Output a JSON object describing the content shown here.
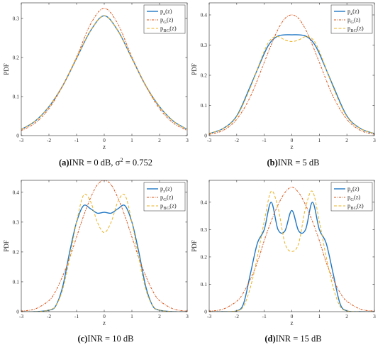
{
  "colors": {
    "pz": "#1f77c4",
    "pg": "#d9541a",
    "pbg": "#edb120",
    "axis": "#262626"
  },
  "chart_data": [
    {
      "type": "line",
      "caption_prefix": "(a)",
      "caption": "INR = 0 dB, σ² = 0.752",
      "xlabel": "z",
      "ylabel": "PDF",
      "xlim": [
        -3,
        3
      ],
      "ylim": [
        0,
        0.34
      ],
      "xticks": [
        "-3",
        "-2",
        "-1",
        "0",
        "1",
        "2",
        "3"
      ],
      "yticks": [
        "0",
        "0.1",
        "0.2",
        "0.3"
      ],
      "ytick_values": [
        0,
        0.1,
        0.2,
        0.3
      ],
      "legend": [
        "p_z(z)",
        "p_G(z)",
        "p_BG(z)"
      ],
      "legend_position": "top-right",
      "x": [
        -3,
        -2.5,
        -2,
        -1.5,
        -1,
        -0.5,
        0,
        0.5,
        1,
        1.5,
        2,
        2.5,
        3
      ],
      "series": [
        {
          "name": "p_z(z)",
          "style": "solid",
          "values": [
            0.016,
            0.037,
            0.074,
            0.128,
            0.198,
            0.268,
            0.307,
            0.268,
            0.198,
            0.128,
            0.074,
            0.037,
            0.016
          ]
        },
        {
          "name": "p_G(z)",
          "style": "dashdot",
          "values": [
            0.013,
            0.032,
            0.069,
            0.128,
            0.201,
            0.285,
            0.326,
            0.285,
            0.201,
            0.128,
            0.069,
            0.032,
            0.013
          ]
        },
        {
          "name": "p_BG(z)",
          "style": "dashed",
          "values": [
            0.016,
            0.037,
            0.074,
            0.128,
            0.198,
            0.268,
            0.307,
            0.268,
            0.198,
            0.128,
            0.074,
            0.037,
            0.016
          ]
        }
      ]
    },
    {
      "type": "line",
      "caption_prefix": "(b)",
      "caption": "INR = 5 dB",
      "xlabel": "z",
      "ylabel": "PDF",
      "xlim": [
        -3,
        3
      ],
      "ylim": [
        0,
        0.44
      ],
      "xticks": [
        "-3",
        "-2",
        "-1",
        "0",
        "1",
        "2",
        "3"
      ],
      "yticks": [
        "0",
        "0.1",
        "0.2",
        "0.3",
        "0.4"
      ],
      "ytick_values": [
        0,
        0.1,
        0.2,
        0.3,
        0.4
      ],
      "legend": [
        "p_z(z)",
        "p_G(z)",
        "p_BG(z)"
      ],
      "legend_position": "top-right",
      "x": [
        -3,
        -2.5,
        -2,
        -1.5,
        -1,
        -0.75,
        -0.5,
        -0.25,
        0,
        0.25,
        0.5,
        0.75,
        1,
        1.5,
        2,
        2.5,
        3
      ],
      "series": [
        {
          "name": "p_z(z)",
          "style": "solid",
          "values": [
            0.007,
            0.023,
            0.065,
            0.165,
            0.272,
            0.312,
            0.33,
            0.334,
            0.334,
            0.334,
            0.33,
            0.312,
            0.272,
            0.165,
            0.065,
            0.023,
            0.007
          ]
        },
        {
          "name": "p_G(z)",
          "style": "dashdot",
          "values": [
            0.004,
            0.017,
            0.054,
            0.13,
            0.243,
            0.3,
            0.352,
            0.388,
            0.4,
            0.388,
            0.352,
            0.3,
            0.243,
            0.13,
            0.054,
            0.017,
            0.004
          ]
        },
        {
          "name": "p_BG(z)",
          "style": "dashed",
          "values": [
            0.007,
            0.023,
            0.063,
            0.16,
            0.28,
            0.32,
            0.328,
            0.317,
            0.312,
            0.317,
            0.328,
            0.32,
            0.28,
            0.16,
            0.063,
            0.023,
            0.007
          ]
        }
      ]
    },
    {
      "type": "line",
      "caption_prefix": "(c)",
      "caption": "INR = 10 dB",
      "xlabel": "z",
      "ylabel": "PDF",
      "xlim": [
        -3,
        3
      ],
      "ylim": [
        0,
        0.44
      ],
      "xticks": [
        "-3",
        "-2",
        "-1",
        "0",
        "1",
        "2",
        "3"
      ],
      "yticks": [
        "0",
        "0.1",
        "0.2",
        "0.3",
        "0.4"
      ],
      "ytick_values": [
        0,
        0.1,
        0.2,
        0.3,
        0.4
      ],
      "legend": [
        "p_z(z)",
        "p_G(z)",
        "p_BG(z)"
      ],
      "legend_position": "top-right",
      "x": [
        -3,
        -2.5,
        -2,
        -1.75,
        -1.5,
        -1.25,
        -1,
        -0.75,
        -0.5,
        -0.25,
        0,
        0.25,
        0.5,
        0.75,
        1,
        1.25,
        1.5,
        1.75,
        2,
        2.5,
        3
      ],
      "series": [
        {
          "name": "p_z(z)",
          "style": "solid",
          "values": [
            0.0,
            0.0,
            0.005,
            0.02,
            0.085,
            0.2,
            0.3,
            0.355,
            0.345,
            0.33,
            0.333,
            0.33,
            0.345,
            0.355,
            0.3,
            0.2,
            0.085,
            0.02,
            0.005,
            0.0,
            0.0
          ]
        },
        {
          "name": "p_G(z)",
          "style": "dashdot",
          "values": [
            0.002,
            0.009,
            0.037,
            0.07,
            0.12,
            0.18,
            0.25,
            0.32,
            0.38,
            0.425,
            0.44,
            0.425,
            0.38,
            0.32,
            0.25,
            0.18,
            0.12,
            0.07,
            0.037,
            0.009,
            0.002
          ]
        },
        {
          "name": "p_BG(z)",
          "style": "dashed",
          "values": [
            0.0,
            0.0,
            0.005,
            0.02,
            0.075,
            0.18,
            0.3,
            0.39,
            0.37,
            0.3,
            0.265,
            0.3,
            0.37,
            0.39,
            0.3,
            0.18,
            0.075,
            0.02,
            0.005,
            0.0,
            0.0
          ]
        }
      ]
    },
    {
      "type": "line",
      "caption_prefix": "(d)",
      "caption": "INR = 15 dB",
      "xlabel": "z",
      "ylabel": "PDF",
      "xlim": [
        -3,
        3
      ],
      "ylim": [
        0,
        0.48
      ],
      "xticks": [
        "-3",
        "-2",
        "-1",
        "0",
        "1",
        "2",
        "3"
      ],
      "yticks": [
        "0",
        "0.1",
        "0.2",
        "0.3",
        "0.4"
      ],
      "ytick_values": [
        0,
        0.1,
        0.2,
        0.3,
        0.4
      ],
      "legend": [
        "p_z(z)",
        "p_G(z)",
        "p_BG(z)"
      ],
      "legend_position": "top-right",
      "x": [
        -3,
        -2.5,
        -2,
        -1.75,
        -1.5,
        -1.25,
        -1,
        -0.75,
        -0.5,
        -0.25,
        0,
        0.25,
        0.5,
        0.75,
        1,
        1.25,
        1.5,
        1.75,
        2,
        2.5,
        3
      ],
      "series": [
        {
          "name": "p_z(z)",
          "style": "solid",
          "values": [
            0.0,
            0.0,
            0.003,
            0.03,
            0.14,
            0.25,
            0.3,
            0.4,
            0.3,
            0.295,
            0.37,
            0.295,
            0.3,
            0.4,
            0.3,
            0.25,
            0.14,
            0.03,
            0.003,
            0.0,
            0.0
          ]
        },
        {
          "name": "p_G(z)",
          "style": "dashdot",
          "values": [
            0.002,
            0.009,
            0.038,
            0.07,
            0.12,
            0.18,
            0.26,
            0.33,
            0.39,
            0.435,
            0.455,
            0.435,
            0.39,
            0.33,
            0.26,
            0.18,
            0.12,
            0.07,
            0.038,
            0.009,
            0.002
          ]
        },
        {
          "name": "p_BG(z)",
          "style": "dashed",
          "values": [
            0.0,
            0.0,
            0.003,
            0.02,
            0.09,
            0.2,
            0.33,
            0.44,
            0.38,
            0.25,
            0.22,
            0.25,
            0.38,
            0.44,
            0.33,
            0.2,
            0.09,
            0.02,
            0.003,
            0.0,
            0.0
          ]
        }
      ]
    }
  ]
}
